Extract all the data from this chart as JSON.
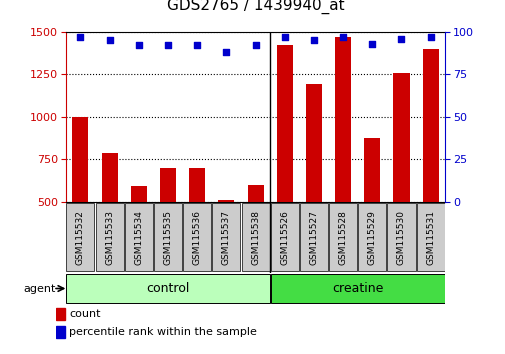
{
  "title": "GDS2765 / 1439940_at",
  "categories": [
    "GSM115532",
    "GSM115533",
    "GSM115534",
    "GSM115535",
    "GSM115536",
    "GSM115537",
    "GSM115538",
    "GSM115526",
    "GSM115527",
    "GSM115528",
    "GSM115529",
    "GSM115530",
    "GSM115531"
  ],
  "counts": [
    1000,
    790,
    590,
    700,
    700,
    510,
    600,
    1420,
    1195,
    1470,
    875,
    1255,
    1400
  ],
  "percentile_ranks": [
    97,
    95,
    92,
    92,
    92,
    88,
    92,
    97,
    95,
    97,
    93,
    96,
    97
  ],
  "groups": [
    {
      "label": "control",
      "start": 0,
      "end": 7,
      "color": "#bbffbb"
    },
    {
      "label": "creatine",
      "start": 7,
      "end": 13,
      "color": "#44dd44"
    }
  ],
  "ylim_left": [
    500,
    1500
  ],
  "ylim_right": [
    0,
    100
  ],
  "yticks_left": [
    500,
    750,
    1000,
    1250,
    1500
  ],
  "yticks_right": [
    0,
    25,
    50,
    75,
    100
  ],
  "bar_color": "#cc0000",
  "scatter_color": "#0000cc",
  "plot_bg": "#ffffff",
  "tick_box_color": "#cccccc",
  "agent_label": "agent",
  "legend_count_label": "count",
  "legend_percentile_label": "percentile rank within the sample",
  "figsize": [
    5.06,
    3.54
  ],
  "dpi": 100
}
